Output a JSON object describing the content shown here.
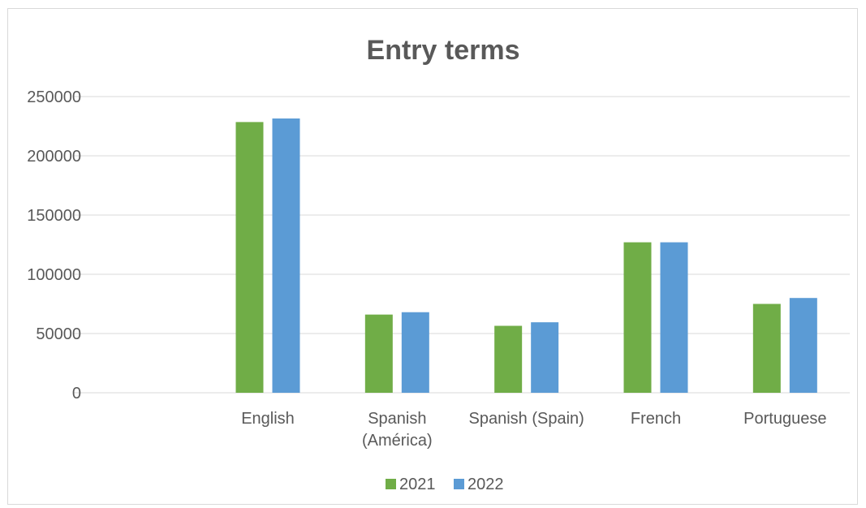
{
  "chart_data": {
    "type": "bar",
    "title": "Entry terms",
    "xlabel": "",
    "ylabel": "",
    "categories": [
      [
        "",
        ""
      ],
      [
        "English"
      ],
      [
        "Spanish",
        "(América)"
      ],
      [
        "Spanish (Spain)"
      ],
      [
        "French"
      ],
      [
        "Portuguese"
      ]
    ],
    "series": [
      {
        "name": "2021",
        "color": "#70ad47",
        "values": [
          null,
          228500,
          66000,
          56500,
          127000,
          75000
        ]
      },
      {
        "name": "2022",
        "color": "#5b9bd5",
        "values": [
          null,
          231500,
          68000,
          59500,
          127000,
          80000
        ]
      }
    ],
    "ylim": [
      0,
      250000
    ],
    "yticks": [
      0,
      50000,
      100000,
      150000,
      200000,
      250000
    ],
    "grid": true,
    "legend_position": "bottom"
  }
}
